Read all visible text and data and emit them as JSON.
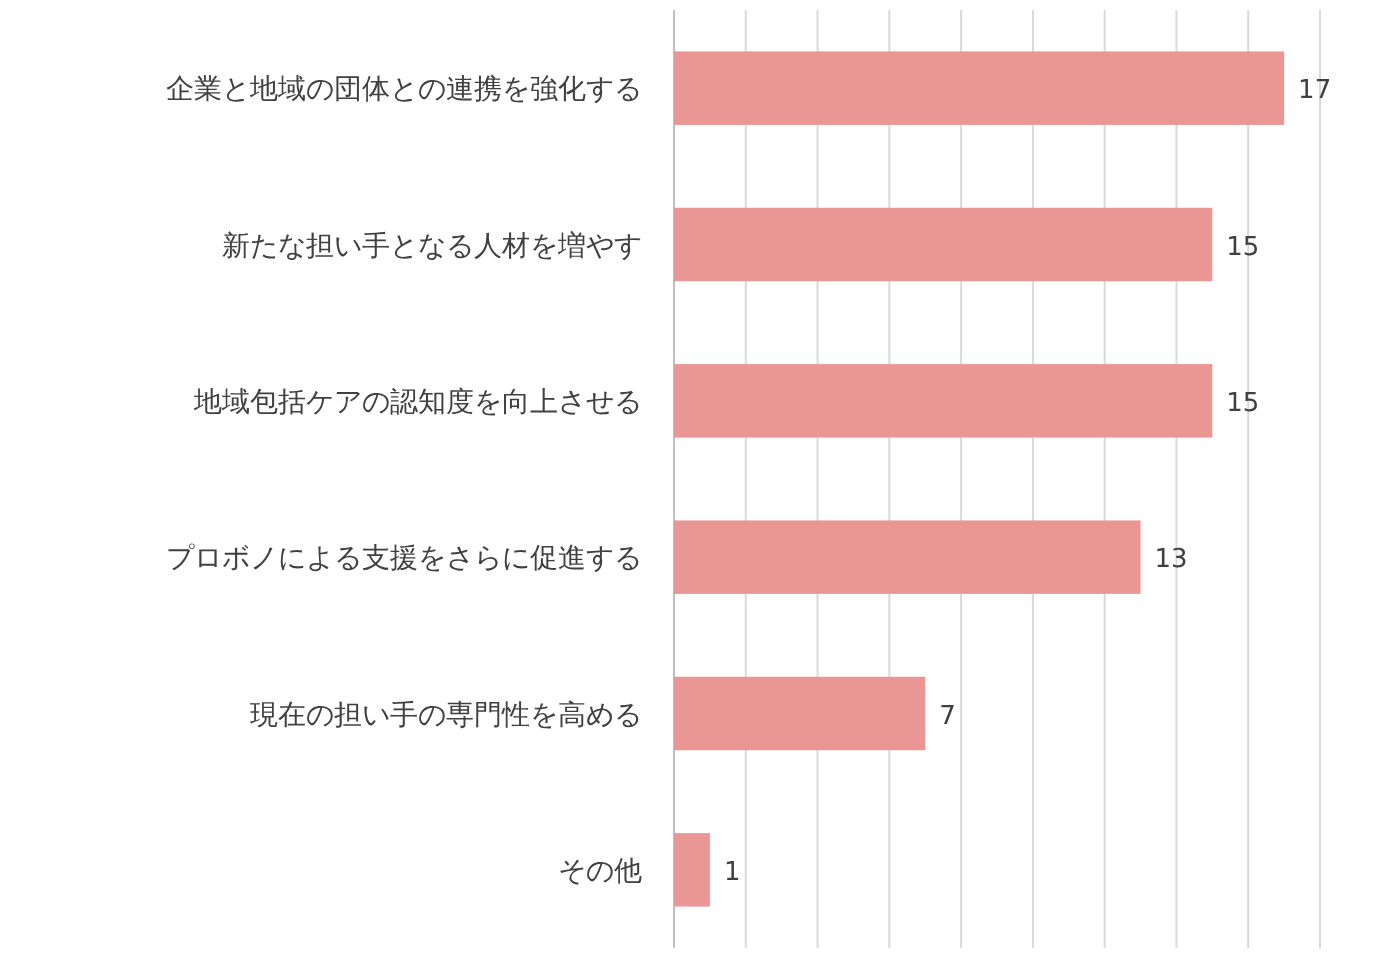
{
  "chart_data": {
    "type": "bar",
    "orientation": "horizontal",
    "categories": [
      "企業と地域の団体との連携を強化する",
      "新たな担い手となる人材を増やす",
      "地域包括ケアの認知度を向上させる",
      "プロボノによる支援をさらに促進する",
      "現在の担い手の専門性を高める",
      "その他"
    ],
    "values": [
      17,
      15,
      15,
      13,
      7,
      1
    ],
    "color": "#e99695",
    "xlim": [
      0,
      18
    ],
    "xticks": [
      {
        "value": 0,
        "label": null
      },
      {
        "value": 2,
        "label": null
      },
      {
        "value": 4,
        "label": null
      },
      {
        "value": 6,
        "label": null
      },
      {
        "value": 8,
        "label": null
      },
      {
        "value": 10,
        "label": null
      },
      {
        "value": 12,
        "label": null
      },
      {
        "value": 14,
        "label": null
      },
      {
        "value": 16,
        "label": null
      },
      {
        "value": 18,
        "label": null
      }
    ],
    "grid": "x",
    "tick_labels": "y",
    "data_labels": true
  }
}
